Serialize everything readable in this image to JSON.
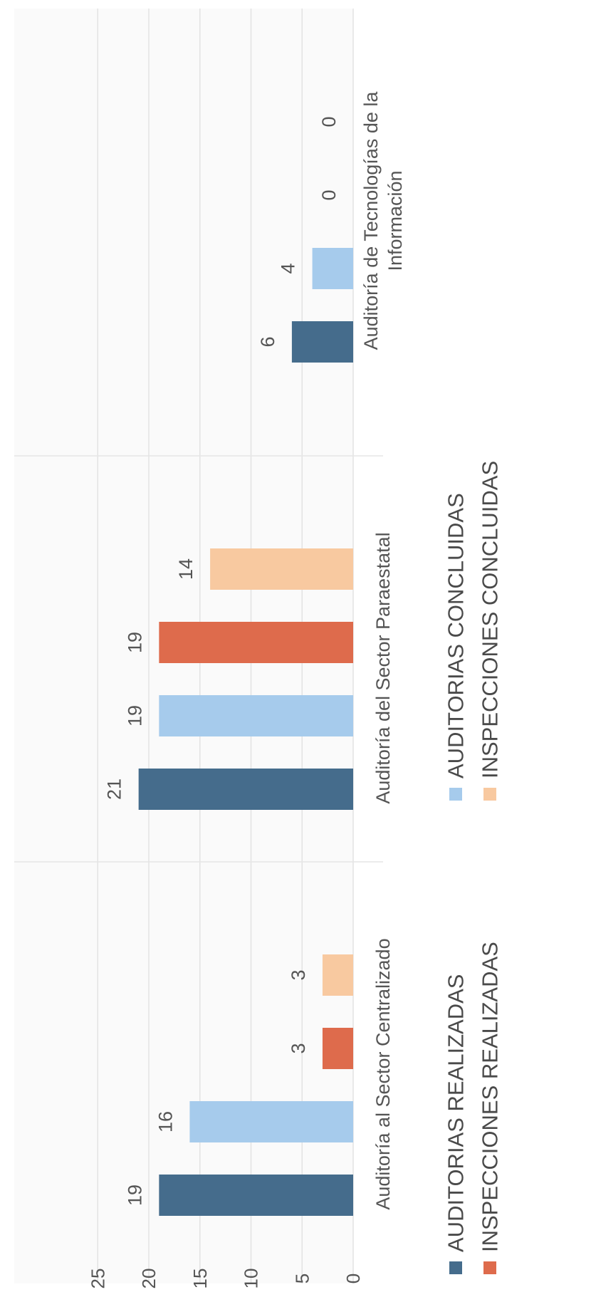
{
  "chart_data": {
    "type": "bar",
    "orientation": "rotated-90-ccw",
    "categories": [
      "Auditoría al Sector Centralizado",
      "Auditoría del Sector Paraestatal",
      [
        "Auditoría de Tecnologías de la",
        "Información"
      ]
    ],
    "series": [
      {
        "name": "AUDITORIAS REALIZADAS",
        "color": "#456c8c",
        "values": [
          19,
          21,
          6
        ]
      },
      {
        "name": "AUDITORIAS CONCLUIDAS",
        "color": "#a6cbec",
        "values": [
          16,
          19,
          4
        ]
      },
      {
        "name": "INSPECCIONES REALIZADAS",
        "color": "#de6b4c",
        "values": [
          3,
          19,
          0
        ]
      },
      {
        "name": "INSPECCIONES CONCLUIDAS",
        "color": "#f8c9a0",
        "values": [
          3,
          14,
          0
        ]
      }
    ],
    "ylim": [
      0,
      25
    ],
    "yticks": [
      0,
      5,
      10,
      15,
      20,
      25
    ],
    "grid": true,
    "legend_position": "bottom"
  }
}
